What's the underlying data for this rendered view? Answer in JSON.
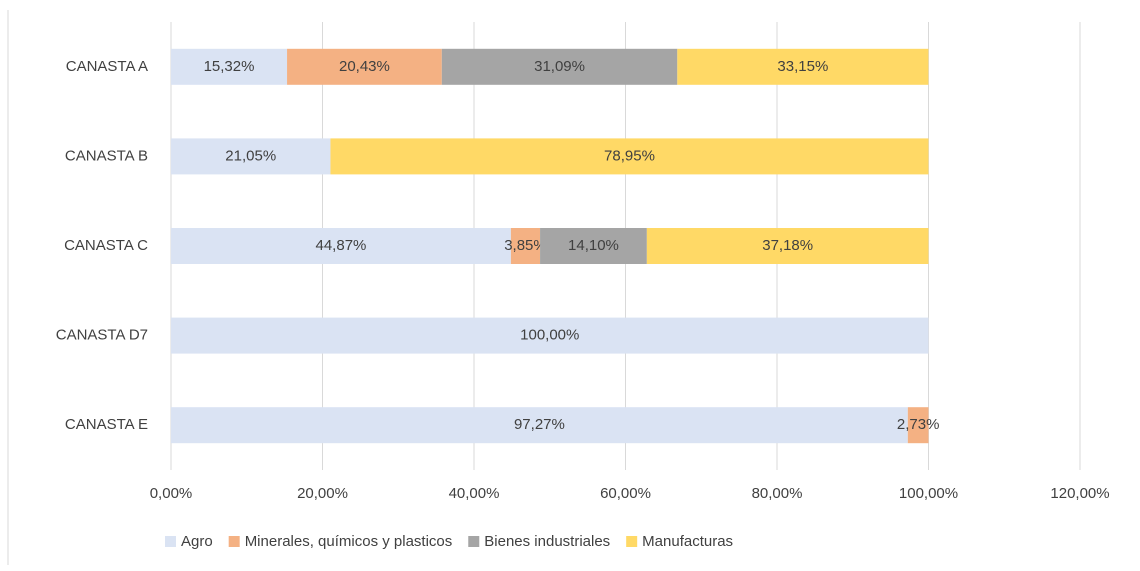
{
  "chart_data": {
    "type": "stacked_barh",
    "categories": [
      "CANASTA A",
      "CANASTA B",
      "CANASTA C",
      "CANASTA D7",
      "CANASTA E"
    ],
    "series": [
      {
        "name": "Agro",
        "color": "#dae3f3",
        "values": [
          15.32,
          21.05,
          44.87,
          100,
          97.27
        ],
        "value_labels": [
          "15,32%",
          "21,05%",
          "44,87%",
          "100,00%",
          "97,27%"
        ]
      },
      {
        "name": "Minerales, químicos y plasticos",
        "color": "#f4b183",
        "values": [
          20.43,
          null,
          3.85,
          null,
          2.73
        ],
        "value_labels": [
          "20,43%",
          null,
          "3,85%",
          null,
          "2,73%"
        ]
      },
      {
        "name": "Bienes industriales",
        "color": "#a5a5a5",
        "values": [
          31.09,
          null,
          14.1,
          null,
          null
        ],
        "value_labels": [
          "31,09%",
          null,
          "14,10%",
          null,
          null
        ]
      },
      {
        "name": "Manufacturas",
        "color": "#ffd966",
        "values": [
          33.15,
          78.95,
          37.18,
          null,
          null
        ],
        "value_labels": [
          "33,15%",
          "78,95%",
          "37,18%",
          null,
          null
        ]
      }
    ],
    "xlim": [
      0,
      120
    ],
    "xticks": [
      {
        "value": 0,
        "label": "0,00%"
      },
      {
        "value": 20,
        "label": "20,00%"
      },
      {
        "value": 40,
        "label": "40,00%"
      },
      {
        "value": 60,
        "label": "60,00%"
      },
      {
        "value": 80,
        "label": "80,00%"
      },
      {
        "value": 100,
        "label": "100,00%"
      },
      {
        "value": 120,
        "label": "120,00%"
      }
    ],
    "grid": true,
    "legend": "bottom"
  }
}
